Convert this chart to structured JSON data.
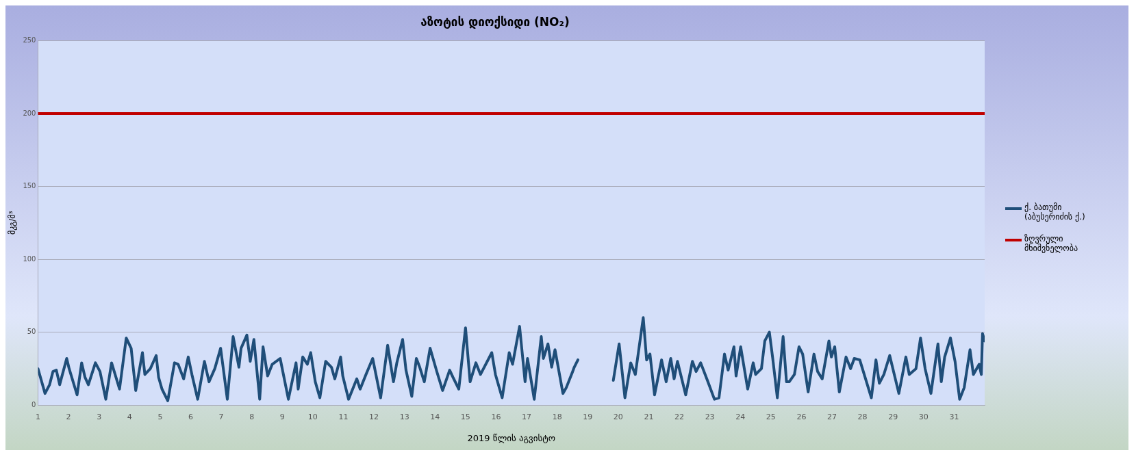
{
  "chart_data": {
    "type": "line",
    "title": "აზოტის დიოქსიდი (NO₂)",
    "xlabel": "2019 წლის აგვისტო",
    "ylabel": "მკგ/მ³",
    "xlim": [
      1,
      32
    ],
    "xticks": [
      1,
      2,
      3,
      4,
      5,
      6,
      7,
      8,
      9,
      10,
      11,
      12,
      13,
      14,
      15,
      16,
      17,
      18,
      19,
      20,
      21,
      22,
      23,
      24,
      25,
      26,
      27,
      28,
      29,
      30,
      31
    ],
    "ylim": [
      0,
      250
    ],
    "yticks": [
      0,
      50,
      100,
      150,
      200,
      250
    ],
    "grid": "y",
    "legend": "right",
    "marker": "none",
    "line_style": "solid",
    "series": [
      {
        "name": "ქ. ბათუმი (აბუსერიძის ქ.)",
        "color": "#1f4e79",
        "x": [
          1.0,
          1.23,
          1.38,
          1.49,
          1.6,
          1.71,
          1.94,
          2.02,
          2.28,
          2.43,
          2.54,
          2.65,
          2.88,
          3.03,
          3.22,
          3.41,
          3.67,
          3.89,
          4.05,
          4.2,
          4.42,
          4.5,
          4.68,
          4.87,
          4.95,
          5.06,
          5.25,
          5.47,
          5.59,
          5.77,
          5.92,
          6.04,
          6.23,
          6.45,
          6.6,
          6.79,
          6.98,
          7.2,
          7.39,
          7.58,
          7.65,
          7.84,
          7.95,
          8.07,
          8.26,
          8.37,
          8.52,
          8.67,
          8.93,
          9.2,
          9.45,
          9.52,
          9.67,
          9.82,
          9.93,
          10.08,
          10.23,
          10.42,
          10.61,
          10.72,
          10.91,
          10.98,
          11.17,
          11.44,
          11.55,
          11.74,
          11.96,
          12.22,
          12.45,
          12.64,
          12.75,
          12.94,
          13.05,
          13.24,
          13.39,
          13.5,
          13.65,
          13.84,
          14.06,
          14.25,
          14.48,
          14.59,
          14.78,
          15.0,
          15.15,
          15.34,
          15.49,
          15.86,
          15.98,
          16.2,
          16.43,
          16.54,
          16.77,
          16.95,
          17.03,
          17.25,
          17.48,
          17.55,
          17.7,
          17.82,
          17.93,
          18.19,
          18.3,
          18.49,
          18.56,
          18.68,
          19.3,
          19.84,
          20.03,
          20.22,
          20.41,
          20.56,
          20.82,
          20.93,
          21.04,
          21.19,
          21.42,
          21.57,
          21.72,
          21.83,
          21.94,
          22.21,
          22.43,
          22.55,
          22.7,
          22.92,
          23.15,
          23.3,
          23.48,
          23.6,
          23.79,
          23.86,
          24.01,
          24.24,
          24.42,
          24.5,
          24.69,
          24.8,
          24.95,
          25.06,
          25.21,
          25.4,
          25.51,
          25.6,
          25.77,
          25.92,
          26.04,
          26.22,
          26.41,
          26.53,
          26.68,
          26.9,
          26.98,
          27.09,
          27.24,
          27.46,
          27.61,
          27.73,
          27.91,
          28.1,
          28.29,
          28.44,
          28.55,
          28.7,
          28.89,
          29.19,
          29.42,
          29.53,
          29.75,
          29.9,
          30.05,
          30.24,
          30.47,
          30.58,
          30.69,
          30.88,
          31.03,
          31.18,
          31.33,
          31.52,
          31.63,
          31.82,
          31.89,
          31.93,
          32.0
        ],
        "values": [
          25,
          8,
          14,
          23,
          24,
          14,
          32,
          25,
          7,
          29,
          19,
          14,
          29,
          23,
          4,
          29,
          11,
          46,
          39,
          10,
          36,
          21,
          25,
          34,
          19,
          11,
          3,
          29,
          28,
          18,
          33,
          21,
          4,
          30,
          16,
          25,
          39,
          4,
          47,
          26,
          39,
          48,
          30,
          45,
          4,
          40,
          20,
          28,
          32,
          4,
          29,
          11,
          33,
          28,
          36,
          16,
          5,
          30,
          26,
          18,
          33,
          20,
          4,
          18,
          11,
          21,
          32,
          5,
          41,
          16,
          29,
          45,
          24,
          6,
          32,
          26,
          16,
          39,
          23,
          10,
          24,
          19,
          11,
          53,
          16,
          29,
          21,
          36,
          21,
          5,
          36,
          28,
          54,
          16,
          32,
          4,
          47,
          32,
          42,
          26,
          38,
          8,
          12,
          22,
          26,
          31,
          null,
          17,
          42,
          5,
          29,
          21,
          60,
          31,
          35,
          7,
          31,
          16,
          32,
          18,
          30,
          7,
          30,
          23,
          29,
          17,
          4,
          5,
          35,
          24,
          40,
          20,
          40,
          11,
          29,
          21,
          25,
          44,
          50,
          32,
          5,
          47,
          16,
          16,
          21,
          40,
          35,
          9,
          35,
          23,
          18,
          44,
          33,
          40,
          9,
          33,
          25,
          32,
          31,
          18,
          5,
          31,
          15,
          21,
          34,
          8,
          33,
          21,
          25,
          46,
          25,
          8,
          42,
          16,
          33,
          46,
          30,
          4,
          12,
          38,
          21,
          28,
          21,
          49,
          44
        ]
      },
      {
        "name": "ზღვრული მნიშვნელობა",
        "color": "#c00000",
        "x": [
          1,
          32
        ],
        "values": [
          200,
          200
        ]
      }
    ]
  }
}
